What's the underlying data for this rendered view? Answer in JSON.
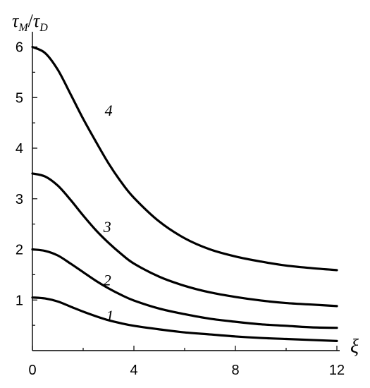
{
  "chart_data": {
    "type": "line",
    "xlabel": "ξ",
    "ylabel_main": "τ",
    "ylabel_sub_1": "M",
    "ylabel_slash": "/",
    "ylabel_sub_2": "D",
    "xlim": [
      0,
      12
    ],
    "ylim": [
      0,
      6.3
    ],
    "x_ticks": [
      0,
      4,
      8,
      12
    ],
    "x_minor_ticks": [
      2,
      6,
      10
    ],
    "y_ticks": [
      1,
      2,
      3,
      4,
      5,
      6
    ],
    "y_minor_ticks": [
      0.5,
      1.5,
      2.5,
      3.5,
      4.5,
      5.5
    ],
    "grid": false,
    "legend": "none",
    "x": [
      0,
      0.5,
      1,
      1.5,
      2,
      2.5,
      3,
      3.5,
      4,
      5,
      6,
      7,
      8,
      9,
      10,
      11,
      12
    ],
    "series": [
      {
        "name": "1",
        "values": [
          1.05,
          1.03,
          0.97,
          0.87,
          0.77,
          0.68,
          0.6,
          0.54,
          0.49,
          0.42,
          0.36,
          0.32,
          0.28,
          0.25,
          0.23,
          0.21,
          0.19
        ],
        "label_at": [
          2.9,
          0.7
        ]
      },
      {
        "name": "2",
        "values": [
          2.0,
          1.97,
          1.88,
          1.72,
          1.55,
          1.38,
          1.23,
          1.1,
          0.99,
          0.83,
          0.72,
          0.63,
          0.57,
          0.52,
          0.49,
          0.46,
          0.45
        ],
        "label_at": [
          2.8,
          1.4
        ]
      },
      {
        "name": "3",
        "values": [
          3.5,
          3.44,
          3.26,
          2.98,
          2.67,
          2.38,
          2.13,
          1.91,
          1.72,
          1.46,
          1.28,
          1.15,
          1.06,
          0.99,
          0.94,
          0.91,
          0.88
        ],
        "label_at": [
          2.8,
          2.45
        ]
      },
      {
        "name": "4",
        "values": [
          6.0,
          5.88,
          5.55,
          5.07,
          4.58,
          4.13,
          3.7,
          3.33,
          3.02,
          2.55,
          2.22,
          2.0,
          1.86,
          1.76,
          1.68,
          1.63,
          1.59
        ],
        "label_at": [
          2.85,
          4.75
        ]
      }
    ]
  }
}
